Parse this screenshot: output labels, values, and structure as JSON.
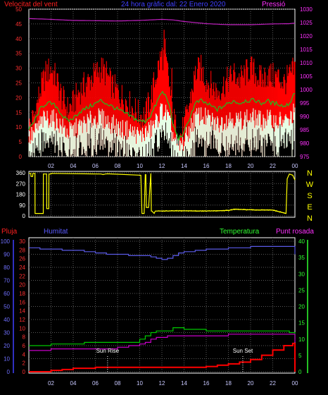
{
  "chart_data": [
    {
      "type": "line",
      "title": "24 hora gràfic dal: 22 Enero 2020",
      "left_axis_label": "Velocitat del vent",
      "right_axis_label": "Pressió",
      "x_ticks": [
        "02",
        "04",
        "06",
        "08",
        "10",
        "12",
        "14",
        "16",
        "18",
        "20",
        "22",
        "00"
      ],
      "left_ylim": [
        0,
        50
      ],
      "left_ticks": [
        0,
        5,
        10,
        15,
        20,
        25,
        30,
        35,
        40,
        45,
        50
      ],
      "right_ylim": [
        975,
        1030
      ],
      "right_ticks": [
        975,
        980,
        985,
        990,
        995,
        1000,
        1005,
        1010,
        1015,
        1020,
        1025,
        1030
      ],
      "grid": true,
      "series": [
        {
          "name": "Velocitat del vent",
          "axis": "left",
          "color": "#ff0000",
          "style": "filled-noisy-max",
          "x": [
            0,
            0.5,
            1,
            1.5,
            2,
            2.5,
            3,
            3.5,
            4,
            4.5,
            5,
            5.5,
            6,
            6.5,
            7,
            7.5,
            8,
            8.5,
            9,
            9.5,
            10,
            10.5,
            11,
            11.5,
            12,
            12.5,
            13,
            13.5,
            14,
            14.5,
            15,
            15.5,
            16,
            16.5,
            17,
            17.5,
            18,
            18.5,
            19,
            19.5,
            20,
            20.5,
            21,
            21.5,
            22,
            22.5,
            23,
            23.5,
            24
          ],
          "values": [
            10,
            14,
            22,
            28,
            30,
            26,
            20,
            16,
            18,
            22,
            24,
            26,
            28,
            30,
            28,
            24,
            22,
            20,
            18,
            16,
            14,
            14,
            20,
            28,
            35,
            30,
            14,
            6,
            10,
            18,
            28,
            30,
            26,
            24,
            22,
            24,
            26,
            28,
            26,
            28,
            30,
            28,
            26,
            28,
            27,
            27,
            25,
            27,
            30
          ]
        },
        {
          "name": "Velocitat del vent",
          "axis": "left",
          "color": "#1ec01e",
          "style": "line",
          "x": [
            0,
            0.5,
            1,
            1.5,
            2,
            2.5,
            3,
            3.5,
            4,
            4.5,
            5,
            5.5,
            6,
            6.5,
            7,
            7.5,
            8,
            8.5,
            9,
            9.5,
            10,
            10.5,
            11,
            11.5,
            12,
            12.5,
            13,
            13.5,
            14,
            14.5,
            15,
            15.5,
            16,
            16.5,
            17,
            17.5,
            18,
            18.5,
            19,
            19.5,
            20,
            20.5,
            21,
            21.5,
            22,
            22.5,
            23,
            23.5,
            24
          ],
          "values": [
            9,
            12,
            16,
            18,
            18,
            17,
            14,
            12,
            13,
            15,
            16,
            17,
            18,
            19,
            18,
            17,
            16,
            15,
            14,
            13,
            12,
            12,
            14,
            18,
            22,
            20,
            11,
            6,
            8,
            13,
            18,
            19,
            18,
            17,
            16,
            17,
            18,
            19,
            18,
            19,
            19,
            19,
            18,
            19,
            18,
            18,
            17,
            18,
            22
          ]
        },
        {
          "name": "Velocitat del vent",
          "axis": "left",
          "color": "#e6ffe6",
          "style": "filled-noisy-min",
          "x": [
            0,
            0.5,
            1,
            1.5,
            2,
            2.5,
            3,
            3.5,
            4,
            4.5,
            5,
            5.5,
            6,
            6.5,
            7,
            7.5,
            8,
            8.5,
            9,
            9.5,
            10,
            10.5,
            11,
            11.5,
            12,
            12.5,
            13,
            13.5,
            14,
            14.5,
            15,
            15.5,
            16,
            16.5,
            17,
            17.5,
            18,
            18.5,
            19,
            19.5,
            20,
            20.5,
            21,
            21.5,
            22,
            22.5,
            23,
            23.5,
            24
          ],
          "values": [
            6,
            8,
            11,
            13,
            13,
            12,
            10,
            8,
            9,
            10,
            11,
            12,
            13,
            13,
            12,
            11,
            10,
            9,
            9,
            8,
            7,
            8,
            9,
            12,
            16,
            14,
            7,
            3,
            5,
            9,
            13,
            14,
            13,
            12,
            11,
            12,
            13,
            13,
            12,
            13,
            13,
            13,
            12,
            13,
            12,
            12,
            12,
            12,
            16
          ]
        },
        {
          "name": "Pressió",
          "axis": "right",
          "color": "#c020c0",
          "style": "line",
          "x": [
            0,
            2,
            4,
            6,
            8,
            10,
            12,
            13,
            14,
            16,
            18,
            20,
            22,
            23.5,
            24
          ],
          "values": [
            1026.5,
            1026.2,
            1025.8,
            1025.7,
            1025.6,
            1025.8,
            1026.2,
            1026.0,
            1025.4,
            1024.6,
            1024.2,
            1024.2,
            1024.5,
            1024.6,
            1024.8
          ]
        }
      ]
    },
    {
      "type": "line",
      "title": "",
      "left_ylim": [
        0,
        360
      ],
      "left_ticks": [
        0,
        90,
        180,
        270,
        360
      ],
      "right_labels": [
        "N",
        "W",
        "S",
        "E",
        "N"
      ],
      "grid": true,
      "series": [
        {
          "name": "",
          "color": "#ffff00",
          "style": "line",
          "x": [
            0,
            0.18,
            0.19,
            0.35,
            0.36,
            0.55,
            0.56,
            1.3,
            1.31,
            1.6,
            1.61,
            1.8,
            1.81,
            2.0,
            2.01,
            6.5,
            6.7,
            6.9,
            7.1,
            10.1,
            10.2,
            10.4,
            10.5,
            10.55,
            10.6,
            10.8,
            11.0,
            11.05,
            11.1,
            11.3,
            11.4,
            11.5,
            14,
            16,
            18,
            18.5,
            20,
            22,
            23.2,
            23.3,
            23.5,
            23.8,
            24
          ],
          "values": [
            355,
            355,
            330,
            330,
            355,
            355,
            20,
            20,
            350,
            350,
            60,
            60,
            350,
            350,
            355,
            350,
            345,
            350,
            352,
            340,
            20,
            20,
            345,
            345,
            70,
            70,
            355,
            40,
            40,
            20,
            40,
            40,
            42,
            40,
            45,
            55,
            50,
            48,
            20,
            310,
            350,
            340,
            300
          ]
        }
      ]
    },
    {
      "type": "line",
      "title": "",
      "labels": {
        "rain": "Pluja",
        "humidity": "Humitat",
        "temperature": "Temperatura",
        "dew_point": "Punt rosada",
        "sunrise": "Sun Rise",
        "sunset": "Sun Set"
      },
      "rain_ylim": [
        0,
        30
      ],
      "rain_ticks": [
        0,
        2,
        4,
        6,
        8,
        10,
        12,
        14,
        16,
        18,
        20,
        22,
        24,
        26,
        28,
        30
      ],
      "humidity_ylim": [
        0,
        100
      ],
      "humidity_ticks": [
        0,
        10,
        20,
        30,
        40,
        50,
        60,
        70,
        80,
        90,
        100
      ],
      "temperature_ylim": [
        0,
        40
      ],
      "temperature_ticks": [
        0,
        5,
        10,
        15,
        20,
        25,
        30,
        35,
        40
      ],
      "x_ticks": [
        "02",
        "04",
        "06",
        "08",
        "10",
        "12",
        "14",
        "16",
        "18",
        "20",
        "22",
        "00"
      ],
      "sunrise_hour": 7.1,
      "sunset_hour": 19.3,
      "grid": true,
      "series": [
        {
          "name": "Humitat",
          "axis": "humidity",
          "color": "#5a5ae6",
          "style": "step",
          "x": [
            0,
            1,
            2,
            3,
            4,
            5,
            6,
            7,
            8,
            9,
            10,
            11,
            11.5,
            12,
            12.5,
            13,
            13.5,
            14,
            15,
            16,
            17,
            18,
            19,
            20,
            21,
            22,
            23,
            23.5,
            24
          ],
          "values": [
            95,
            94,
            94,
            93,
            93,
            92,
            91,
            90,
            90,
            89,
            89,
            88,
            87,
            86,
            87,
            89,
            91,
            92,
            93,
            94,
            94,
            95,
            95,
            96,
            96,
            96,
            96,
            96,
            90
          ]
        },
        {
          "name": "Temperatura",
          "axis": "temperature",
          "color": "#00c800",
          "style": "step",
          "x": [
            0,
            1,
            2,
            3,
            4,
            5,
            6,
            7,
            8,
            9,
            10,
            10.5,
            11,
            11.5,
            12,
            12.5,
            13,
            14,
            15,
            16,
            17,
            18,
            19,
            20,
            21,
            22,
            23,
            23.5,
            24
          ],
          "values": [
            8,
            8,
            8.5,
            8.5,
            8.5,
            9,
            9,
            9,
            9,
            9,
            10,
            11,
            12,
            12.5,
            12.5,
            12.5,
            13.5,
            13,
            13,
            12.5,
            12.5,
            12.5,
            12.5,
            12.5,
            12.5,
            12.5,
            12.5,
            12,
            10
          ]
        },
        {
          "name": "Punt rosada",
          "axis": "temperature",
          "color": "#c800c8",
          "style": "step",
          "x": [
            0,
            1,
            2,
            3,
            4,
            5,
            6,
            7,
            8,
            9,
            10,
            10.5,
            11,
            11.5,
            12,
            12.5,
            13,
            14,
            15,
            16,
            17,
            18,
            19,
            20,
            21,
            22,
            23,
            23.5,
            24
          ],
          "values": [
            6.5,
            6.5,
            7,
            7,
            7,
            7,
            7,
            7,
            7.5,
            8,
            8.5,
            9,
            10,
            10.5,
            10.5,
            11,
            11,
            11,
            11,
            11,
            11,
            11.5,
            11.5,
            11.5,
            11.5,
            11.5,
            11.5,
            11.5,
            9
          ]
        },
        {
          "name": "Pluja",
          "axis": "rain",
          "color": "#ff0000",
          "style": "step",
          "x": [
            0,
            1,
            2,
            3,
            4,
            5,
            6,
            7,
            8,
            9,
            10,
            11,
            12,
            13,
            14,
            15,
            16,
            17,
            18,
            19,
            20,
            21,
            22,
            23,
            23.8,
            24
          ],
          "values": [
            0,
            0,
            0.3,
            0.5,
            0.8,
            0.8,
            1,
            1,
            1,
            1,
            1,
            1,
            1,
            1,
            1,
            1,
            1.2,
            1.5,
            1.8,
            2.2,
            2.8,
            3.8,
            5,
            6,
            6.5,
            0
          ]
        }
      ]
    }
  ]
}
